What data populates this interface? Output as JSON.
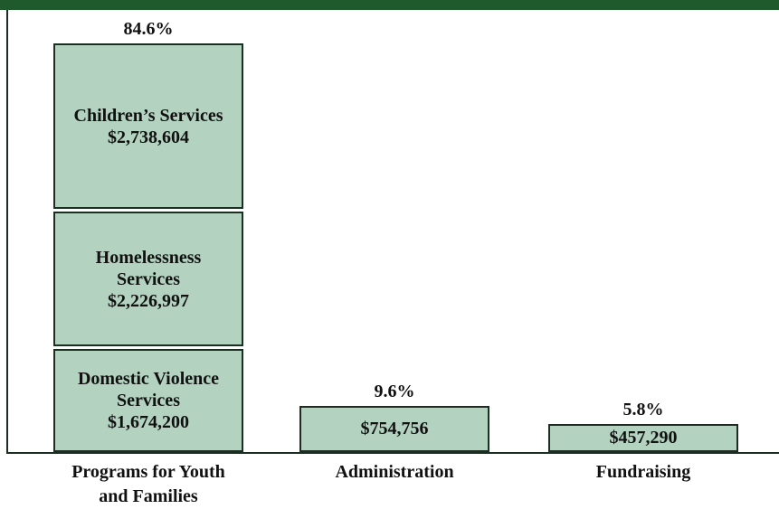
{
  "chart_data": {
    "type": "stacked-bar",
    "color": "#b3d3c0",
    "border_color": "#1c2e22",
    "bars": [
      {
        "category": "Programs for Youth and Families",
        "percent": 84.6,
        "percent_label": "84.6%",
        "segments": [
          {
            "name": "Domestic Violence Services",
            "value": 1674200,
            "value_label": "$1,674,200"
          },
          {
            "name": "Homelessness Services",
            "value": 2226997,
            "value_label": "$2,226,997"
          },
          {
            "name": "Children’s Services",
            "value": 2738604,
            "value_label": "$2,738,604"
          }
        ]
      },
      {
        "category": "Administration",
        "percent": 9.6,
        "percent_label": "9.6%",
        "segments": [
          {
            "value": 754756,
            "value_label": "$754,756"
          }
        ]
      },
      {
        "category": "Fundraising",
        "percent": 5.8,
        "percent_label": "5.8%",
        "segments": [
          {
            "value": 457290,
            "value_label": "$457,290"
          }
        ]
      }
    ]
  }
}
